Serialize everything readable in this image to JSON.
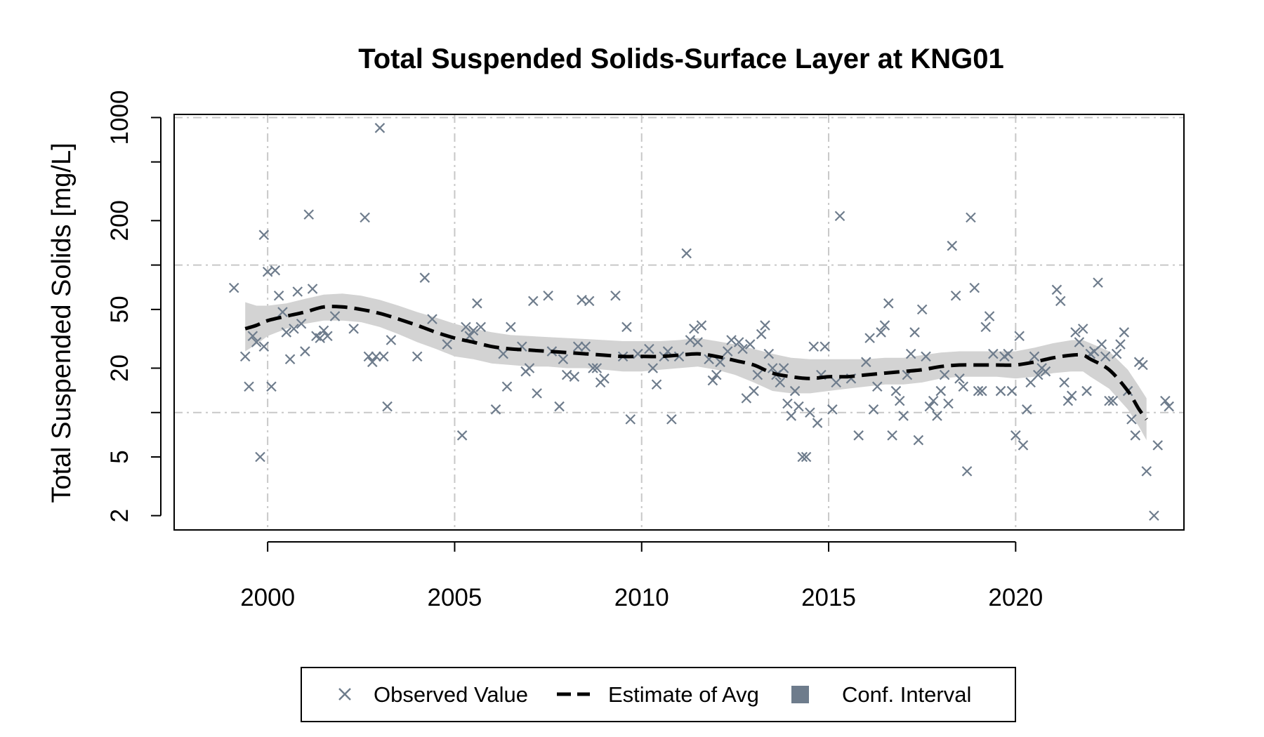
{
  "chart_data": {
    "type": "scatter",
    "title": "Total Suspended Solids-Surface Layer at KNG01",
    "xlabel": "",
    "ylabel": "Total Suspended Solids [mg/L]",
    "y_scale": "log",
    "xlim": [
      1997.5,
      2024.5
    ],
    "ylim": [
      1.6,
      1050
    ],
    "x_ticks": [
      2000,
      2005,
      2010,
      2015,
      2020
    ],
    "x_tick_labels": [
      "2000",
      "2005",
      "2010",
      "2015",
      "2020"
    ],
    "y_ticks": [
      2,
      5,
      20,
      50,
      200,
      1000
    ],
    "y_tick_labels": [
      "2",
      "5",
      "20",
      "50",
      "200",
      "1000"
    ],
    "y_minor_ticks": [
      10,
      100,
      500
    ],
    "grid_x": [
      2000,
      2005,
      2010,
      2015,
      2020
    ],
    "grid_y": [
      10,
      100,
      1000
    ],
    "grid": true,
    "legend_position": "bottom",
    "legend": [
      {
        "label": "Observed Value",
        "symbol": "x"
      },
      {
        "label": "Estimate of Avg",
        "symbol": "dashed-line"
      },
      {
        "label": "Conf. Interval",
        "symbol": "square"
      }
    ],
    "colors": {
      "observed": "#6e7c8c",
      "estimate": "#000000",
      "ci_band": "#d3d3d3",
      "ci_legend": "#6e7c8c",
      "grid": "#c8c8c8"
    },
    "series": [
      {
        "name": "Observed Value",
        "points": [
          [
            1999.1,
            70
          ],
          [
            1999.4,
            24
          ],
          [
            1999.5,
            15
          ],
          [
            1999.6,
            33
          ],
          [
            1999.7,
            30
          ],
          [
            1999.8,
            5
          ],
          [
            1999.9,
            28
          ],
          [
            1999.9,
            160
          ],
          [
            2000.0,
            90
          ],
          [
            2000.1,
            15
          ],
          [
            2000.2,
            92
          ],
          [
            2000.3,
            62
          ],
          [
            2000.4,
            48
          ],
          [
            2000.5,
            35
          ],
          [
            2000.6,
            23
          ],
          [
            2000.7,
            37
          ],
          [
            2000.8,
            66
          ],
          [
            2000.9,
            40
          ],
          [
            2001.0,
            26
          ],
          [
            2001.1,
            220
          ],
          [
            2001.2,
            69
          ],
          [
            2001.3,
            33
          ],
          [
            2001.4,
            32
          ],
          [
            2001.5,
            36
          ],
          [
            2001.6,
            33
          ],
          [
            2001.8,
            45
          ],
          [
            2002.3,
            37
          ],
          [
            2002.6,
            210
          ],
          [
            2002.7,
            24
          ],
          [
            2002.8,
            22
          ],
          [
            2002.9,
            24
          ],
          [
            2003.0,
            850
          ],
          [
            2003.1,
            24
          ],
          [
            2003.2,
            11
          ],
          [
            2003.3,
            31
          ],
          [
            2004.0,
            24
          ],
          [
            2004.2,
            82
          ],
          [
            2004.4,
            43
          ],
          [
            2004.8,
            29
          ],
          [
            2005.2,
            7
          ],
          [
            2005.3,
            38
          ],
          [
            2005.4,
            33
          ],
          [
            2005.5,
            36
          ],
          [
            2005.6,
            55
          ],
          [
            2005.7,
            38
          ],
          [
            2006.1,
            10.5
          ],
          [
            2006.3,
            25
          ],
          [
            2006.4,
            15
          ],
          [
            2006.5,
            38
          ],
          [
            2006.8,
            28
          ],
          [
            2006.9,
            19
          ],
          [
            2007.0,
            20
          ],
          [
            2007.1,
            57
          ],
          [
            2007.2,
            13.5
          ],
          [
            2007.5,
            62
          ],
          [
            2007.6,
            26
          ],
          [
            2007.8,
            11
          ],
          [
            2007.9,
            23
          ],
          [
            2008.0,
            18
          ],
          [
            2008.2,
            17.5
          ],
          [
            2008.3,
            28
          ],
          [
            2008.4,
            58
          ],
          [
            2008.5,
            28
          ],
          [
            2008.6,
            57
          ],
          [
            2008.7,
            20
          ],
          [
            2008.8,
            20
          ],
          [
            2008.9,
            16
          ],
          [
            2009.0,
            17
          ],
          [
            2009.3,
            62
          ],
          [
            2009.5,
            24
          ],
          [
            2009.6,
            38
          ],
          [
            2009.7,
            9
          ],
          [
            2009.9,
            25
          ],
          [
            2010.2,
            27
          ],
          [
            2010.3,
            20
          ],
          [
            2010.4,
            15.5
          ],
          [
            2010.6,
            24
          ],
          [
            2010.7,
            26
          ],
          [
            2010.8,
            9
          ],
          [
            2011.0,
            24
          ],
          [
            2011.2,
            120
          ],
          [
            2011.3,
            31
          ],
          [
            2011.4,
            37
          ],
          [
            2011.5,
            30
          ],
          [
            2011.6,
            39
          ],
          [
            2011.8,
            23
          ],
          [
            2011.9,
            16.5
          ],
          [
            2012.0,
            18
          ],
          [
            2012.1,
            22
          ],
          [
            2012.3,
            26
          ],
          [
            2012.4,
            31
          ],
          [
            2012.6,
            30
          ],
          [
            2012.7,
            27
          ],
          [
            2012.8,
            12.5
          ],
          [
            2012.9,
            29
          ],
          [
            2013.0,
            14
          ],
          [
            2013.1,
            18
          ],
          [
            2013.2,
            34
          ],
          [
            2013.3,
            39
          ],
          [
            2013.4,
            25
          ],
          [
            2013.5,
            20
          ],
          [
            2013.6,
            18
          ],
          [
            2013.7,
            16
          ],
          [
            2013.8,
            20
          ],
          [
            2013.9,
            11.5
          ],
          [
            2014.0,
            9.5
          ],
          [
            2014.1,
            14
          ],
          [
            2014.2,
            11
          ],
          [
            2014.3,
            5
          ],
          [
            2014.4,
            5
          ],
          [
            2014.5,
            10
          ],
          [
            2014.6,
            28
          ],
          [
            2014.7,
            8.5
          ],
          [
            2014.8,
            18
          ],
          [
            2014.9,
            28
          ],
          [
            2015.1,
            10.5
          ],
          [
            2015.2,
            16
          ],
          [
            2015.3,
            215
          ],
          [
            2015.6,
            17
          ],
          [
            2015.8,
            7
          ],
          [
            2016.0,
            22
          ],
          [
            2016.1,
            32
          ],
          [
            2016.2,
            10.5
          ],
          [
            2016.3,
            15
          ],
          [
            2016.4,
            35
          ],
          [
            2016.5,
            39
          ],
          [
            2016.6,
            55
          ],
          [
            2016.7,
            7
          ],
          [
            2016.8,
            14
          ],
          [
            2016.9,
            12
          ],
          [
            2017.0,
            9.5
          ],
          [
            2017.1,
            18
          ],
          [
            2017.2,
            25
          ],
          [
            2017.3,
            35
          ],
          [
            2017.4,
            6.5
          ],
          [
            2017.5,
            50
          ],
          [
            2017.6,
            24
          ],
          [
            2017.7,
            11
          ],
          [
            2017.8,
            12
          ],
          [
            2017.9,
            9.5
          ],
          [
            2018.0,
            14
          ],
          [
            2018.1,
            18
          ],
          [
            2018.2,
            11.5
          ],
          [
            2018.3,
            135
          ],
          [
            2018.4,
            62
          ],
          [
            2018.5,
            17
          ],
          [
            2018.6,
            15
          ],
          [
            2018.7,
            4
          ],
          [
            2018.8,
            210
          ],
          [
            2018.9,
            70
          ],
          [
            2019.0,
            14
          ],
          [
            2019.1,
            14
          ],
          [
            2019.2,
            38
          ],
          [
            2019.3,
            45
          ],
          [
            2019.4,
            25
          ],
          [
            2019.6,
            14
          ],
          [
            2019.7,
            24
          ],
          [
            2019.8,
            25
          ],
          [
            2019.9,
            14
          ],
          [
            2020.0,
            7
          ],
          [
            2020.1,
            33
          ],
          [
            2020.2,
            6
          ],
          [
            2020.3,
            10.5
          ],
          [
            2020.4,
            16
          ],
          [
            2020.5,
            24
          ],
          [
            2020.6,
            18
          ],
          [
            2020.7,
            20
          ],
          [
            2020.8,
            19
          ],
          [
            2021.1,
            68
          ],
          [
            2021.2,
            57
          ],
          [
            2021.3,
            16
          ],
          [
            2021.4,
            12
          ],
          [
            2021.5,
            13
          ],
          [
            2021.6,
            35
          ],
          [
            2021.7,
            30
          ],
          [
            2021.8,
            37
          ],
          [
            2021.9,
            14
          ],
          [
            2022.0,
            25
          ],
          [
            2022.1,
            26
          ],
          [
            2022.2,
            76
          ],
          [
            2022.3,
            29
          ],
          [
            2022.4,
            24
          ],
          [
            2022.5,
            12
          ],
          [
            2022.6,
            12
          ],
          [
            2022.7,
            25
          ],
          [
            2022.8,
            29
          ],
          [
            2022.9,
            35
          ],
          [
            2023.0,
            14
          ],
          [
            2023.1,
            9
          ],
          [
            2023.2,
            7
          ],
          [
            2023.3,
            22
          ],
          [
            2023.4,
            21
          ],
          [
            2023.5,
            4
          ],
          [
            2023.7,
            2
          ],
          [
            2023.8,
            6
          ],
          [
            2024.0,
            12
          ],
          [
            2024.1,
            11
          ]
        ]
      },
      {
        "name": "Estimate of Avg",
        "points": [
          [
            1999.4,
            37
          ],
          [
            1999.7,
            39
          ],
          [
            2000.0,
            42
          ],
          [
            2000.5,
            45
          ],
          [
            2001.0,
            48
          ],
          [
            2001.5,
            52
          ],
          [
            2002.0,
            52
          ],
          [
            2002.5,
            50
          ],
          [
            2003.0,
            47
          ],
          [
            2003.5,
            43
          ],
          [
            2004.0,
            39
          ],
          [
            2004.5,
            35
          ],
          [
            2005.0,
            32
          ],
          [
            2005.5,
            30
          ],
          [
            2006.0,
            28
          ],
          [
            2006.5,
            27
          ],
          [
            2007.0,
            26.5
          ],
          [
            2007.5,
            26
          ],
          [
            2008.0,
            25.5
          ],
          [
            2008.5,
            25
          ],
          [
            2009.0,
            24.5
          ],
          [
            2009.5,
            24
          ],
          [
            2010.0,
            24
          ],
          [
            2010.5,
            24
          ],
          [
            2011.0,
            24.5
          ],
          [
            2011.5,
            25
          ],
          [
            2012.0,
            24
          ],
          [
            2012.5,
            22.5
          ],
          [
            2013.0,
            21
          ],
          [
            2013.5,
            18.5
          ],
          [
            2014.0,
            17.5
          ],
          [
            2014.5,
            17
          ],
          [
            2015.0,
            17.5
          ],
          [
            2015.5,
            17.5
          ],
          [
            2016.0,
            18
          ],
          [
            2016.5,
            18.5
          ],
          [
            2017.0,
            19
          ],
          [
            2017.5,
            19.5
          ],
          [
            2018.0,
            20.5
          ],
          [
            2018.5,
            21
          ],
          [
            2019.0,
            21
          ],
          [
            2019.5,
            21
          ],
          [
            2020.0,
            21
          ],
          [
            2020.5,
            22
          ],
          [
            2021.0,
            23.5
          ],
          [
            2021.5,
            24.5
          ],
          [
            2021.8,
            24.5
          ],
          [
            2022.0,
            23
          ],
          [
            2022.5,
            19.5
          ],
          [
            2023.0,
            14
          ],
          [
            2023.3,
            10.5
          ],
          [
            2023.5,
            9
          ]
        ]
      }
    ],
    "confidence_interval": {
      "name": "Conf. Interval",
      "x": [
        1999.4,
        1999.7,
        2000.0,
        2000.5,
        2001.0,
        2001.5,
        2002.0,
        2002.5,
        2003.0,
        2003.5,
        2004.0,
        2004.5,
        2005.0,
        2005.5,
        2006.0,
        2006.5,
        2007.0,
        2007.5,
        2008.0,
        2008.5,
        2009.0,
        2009.5,
        2010.0,
        2010.5,
        2011.0,
        2011.5,
        2012.0,
        2012.5,
        2013.0,
        2013.5,
        2014.0,
        2014.5,
        2015.0,
        2015.5,
        2016.0,
        2016.5,
        2017.0,
        2017.5,
        2018.0,
        2018.5,
        2019.0,
        2019.5,
        2020.0,
        2020.5,
        2021.0,
        2021.5,
        2021.8,
        2022.0,
        2022.5,
        2023.0,
        2023.3,
        2023.5
      ],
      "lower": [
        26,
        29,
        33,
        37,
        40,
        42,
        42,
        41,
        38,
        34,
        30,
        27,
        24,
        23,
        21.5,
        21,
        20.5,
        20.5,
        20,
        20,
        19.5,
        19,
        19,
        19.5,
        20,
        20.5,
        19.5,
        18,
        16,
        14,
        13.5,
        13.5,
        14,
        14.5,
        15,
        15.5,
        15.5,
        16,
        17,
        17.5,
        17.5,
        17.5,
        17,
        17.5,
        18.5,
        19,
        19,
        17.5,
        14.5,
        10.5,
        8,
        6.5
      ],
      "upper": [
        56,
        53,
        53,
        55,
        59,
        63,
        64,
        62,
        58,
        53,
        48,
        44,
        40,
        37,
        35,
        33.5,
        33,
        32.5,
        32,
        31.5,
        31,
        30.5,
        30.5,
        30.5,
        31,
        32,
        30.5,
        29,
        27,
        25,
        23.5,
        23,
        23,
        23,
        23,
        23.5,
        23.5,
        24.5,
        25.5,
        26,
        26,
        26,
        26,
        27.5,
        29.5,
        31,
        31,
        29.5,
        26,
        19.5,
        15,
        12.5
      ]
    }
  }
}
